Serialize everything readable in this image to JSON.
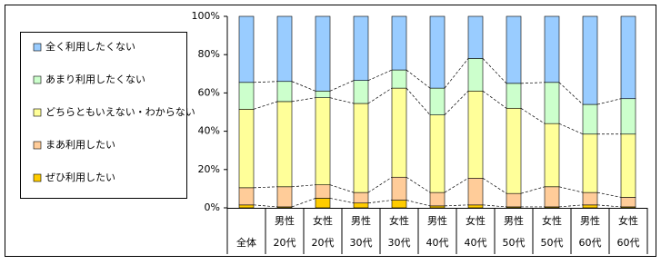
{
  "chart_data": {
    "type": "stacked_bar_100",
    "categories": [
      [
        "全体"
      ],
      [
        "男性",
        "20代"
      ],
      [
        "女性",
        "20代"
      ],
      [
        "男性",
        "30代"
      ],
      [
        "女性",
        "30代"
      ],
      [
        "男性",
        "40代"
      ],
      [
        "女性",
        "40代"
      ],
      [
        "男性",
        "50代"
      ],
      [
        "女性",
        "50代"
      ],
      [
        "男性",
        "60代"
      ],
      [
        "女性",
        "60代"
      ]
    ],
    "series": [
      {
        "name": "ぜひ利用したい",
        "color": "#ffcc00",
        "values": [
          1.5,
          0.5,
          5,
          2.5,
          4,
          1,
          1.5,
          0.5,
          0.5,
          1.5,
          0.5
        ]
      },
      {
        "name": "まあ利用したい",
        "color": "#ffcc99",
        "values": [
          9,
          10.5,
          7,
          5.5,
          12,
          7,
          14,
          7,
          10.5,
          6.5,
          5
        ]
      },
      {
        "name": "どちらともいえない・わからない",
        "color": "#ffff99",
        "values": [
          41,
          44.5,
          45.5,
          46.5,
          46.5,
          40.5,
          45.5,
          44.5,
          33,
          30.5,
          33
        ]
      },
      {
        "name": "あまり利用したくない",
        "color": "#ccffcc",
        "values": [
          14,
          10.5,
          3.5,
          12,
          9.5,
          14,
          17,
          13,
          21.5,
          15.5,
          18.5
        ]
      },
      {
        "name": "全く利用したくない",
        "color": "#99ccff",
        "values": [
          34.5,
          34,
          39,
          33.5,
          28,
          37.5,
          22,
          35,
          34.5,
          46,
          43
        ]
      }
    ],
    "ylim": [
      0,
      100
    ],
    "yticks": [
      {
        "value": 0,
        "label": "0%"
      },
      {
        "value": 20,
        "label": "20%"
      },
      {
        "value": 40,
        "label": "40%"
      },
      {
        "value": 60,
        "label": "60%"
      },
      {
        "value": 80,
        "label": "80%"
      },
      {
        "value": 100,
        "label": "100%"
      }
    ],
    "legend": "left"
  }
}
